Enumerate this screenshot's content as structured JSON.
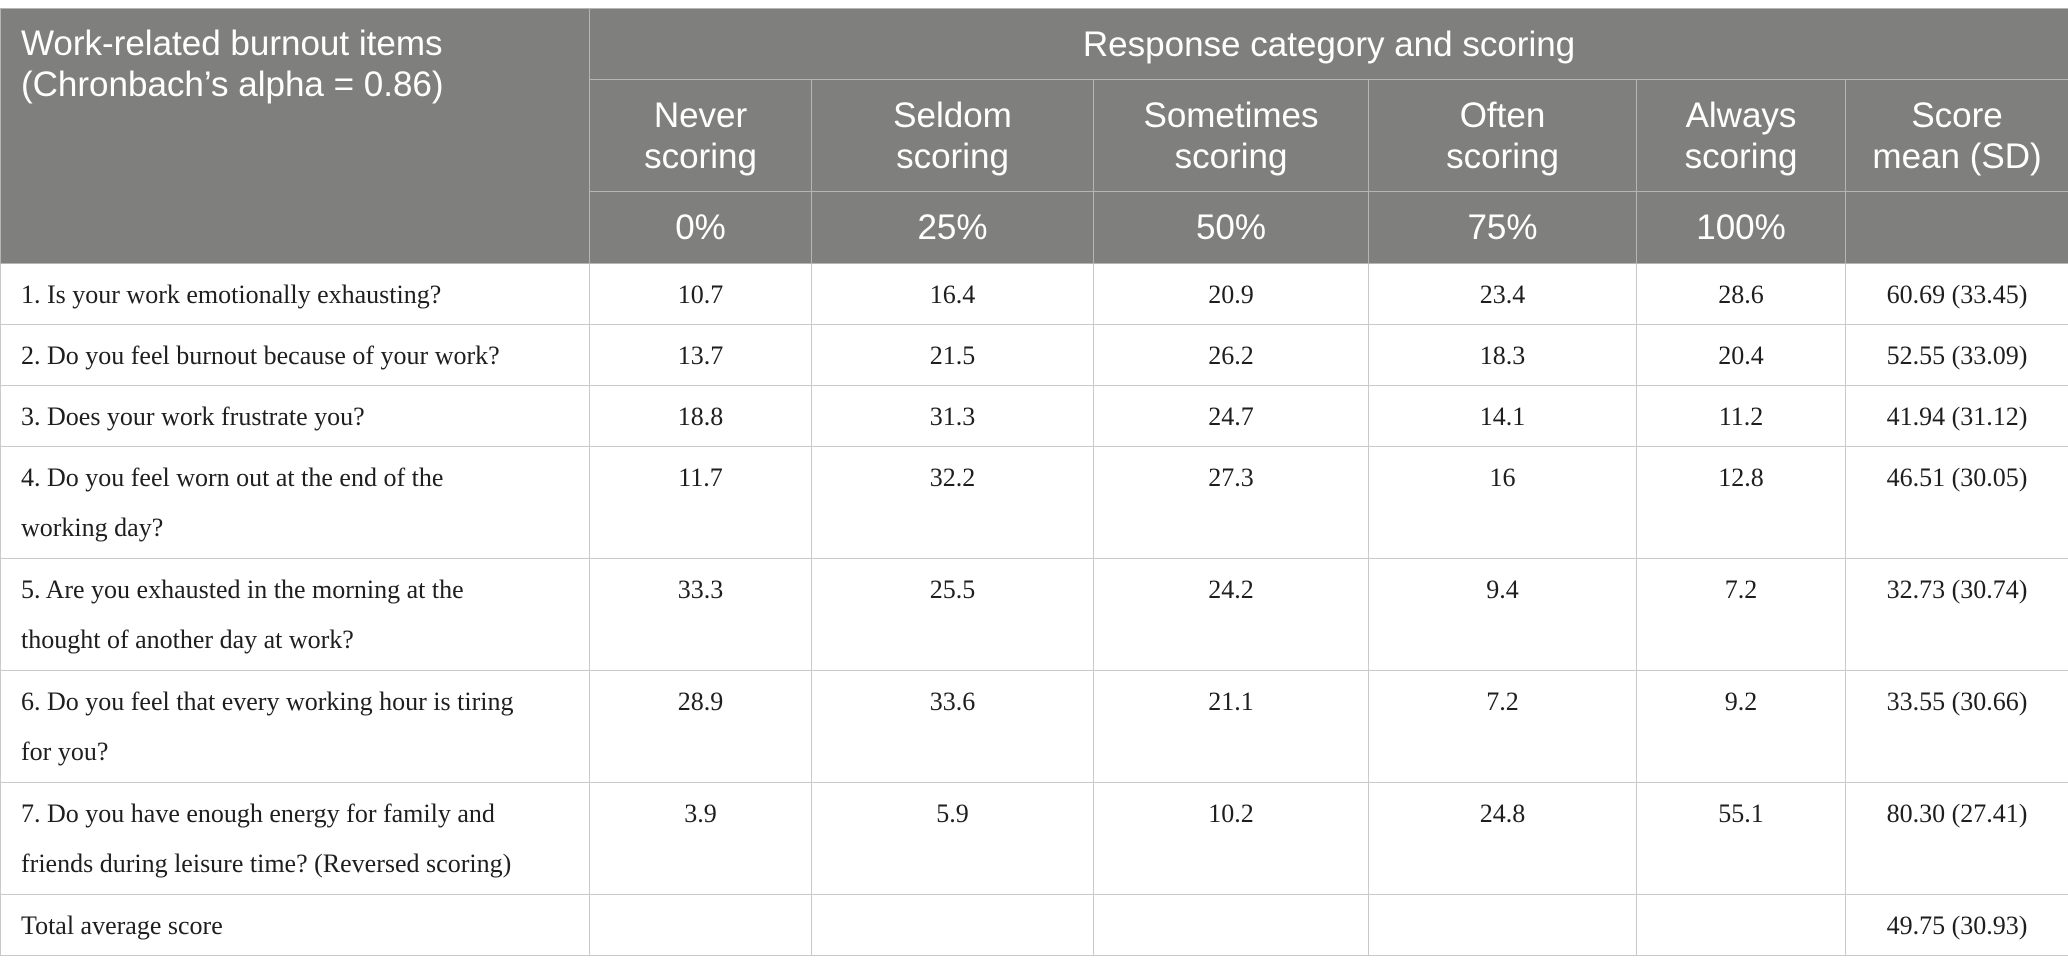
{
  "header": {
    "item_title_line1": "Work-related burnout items",
    "item_title_line2": "(Chronbach’s alpha = 0.86)",
    "group_title": "Response category and scoring",
    "columns": [
      {
        "label_line1": "Never",
        "label_line2": "scoring",
        "pct": "0%"
      },
      {
        "label_line1": "Seldom",
        "label_line2": "scoring",
        "pct": "25%"
      },
      {
        "label_line1": "Sometimes",
        "label_line2": "scoring",
        "pct": "50%"
      },
      {
        "label_line1": "Often",
        "label_line2": "scoring",
        "pct": "75%"
      },
      {
        "label_line1": "Always",
        "label_line2": "scoring",
        "pct": "100%"
      }
    ],
    "score_line1": "Score",
    "score_line2": "mean (SD)"
  },
  "rows": [
    {
      "item_line1": "1. Is your work emotionally exhausting?",
      "item_line2": "",
      "values": [
        "10.7",
        "16.4",
        "20.9",
        "23.4",
        "28.6"
      ],
      "score": "60.69 (33.45)"
    },
    {
      "item_line1": "2. Do you feel burnout because of your work?",
      "item_line2": "",
      "values": [
        "13.7",
        "21.5",
        "26.2",
        "18.3",
        "20.4"
      ],
      "score": "52.55 (33.09)"
    },
    {
      "item_line1": "3. Does your work frustrate you?",
      "item_line2": "",
      "values": [
        "18.8",
        "31.3",
        "24.7",
        "14.1",
        "11.2"
      ],
      "score": "41.94 (31.12)"
    },
    {
      "item_line1": "4. Do you feel worn out at the end of the",
      "item_line2": "working day?",
      "values": [
        "11.7",
        "32.2",
        "27.3",
        "16",
        "12.8"
      ],
      "score": "46.51 (30.05)"
    },
    {
      "item_line1": "5. Are you exhausted in the morning at the",
      "item_line2": "thought of another day at work?",
      "values": [
        "33.3",
        "25.5",
        "24.2",
        "9.4",
        "7.2"
      ],
      "score": "32.73 (30.74)"
    },
    {
      "item_line1": "6. Do you feel that every working hour is tiring",
      "item_line2": "for you?",
      "values": [
        "28.9",
        "33.6",
        "21.1",
        "7.2",
        "9.2"
      ],
      "score": "33.55 (30.66)"
    },
    {
      "item_line1": "7. Do you have enough energy for family and",
      "item_line2": "friends during leisure time? (Reversed scoring)",
      "values": [
        "3.9",
        "5.9",
        "10.2",
        "24.8",
        "55.1"
      ],
      "score": "80.30 (27.41)"
    }
  ],
  "total": {
    "label": "Total average score",
    "score": "49.75 (30.93)"
  },
  "colors": {
    "header_bg": "#7f807e",
    "header_text": "#ffffff",
    "grid": "#c9c9c9"
  }
}
